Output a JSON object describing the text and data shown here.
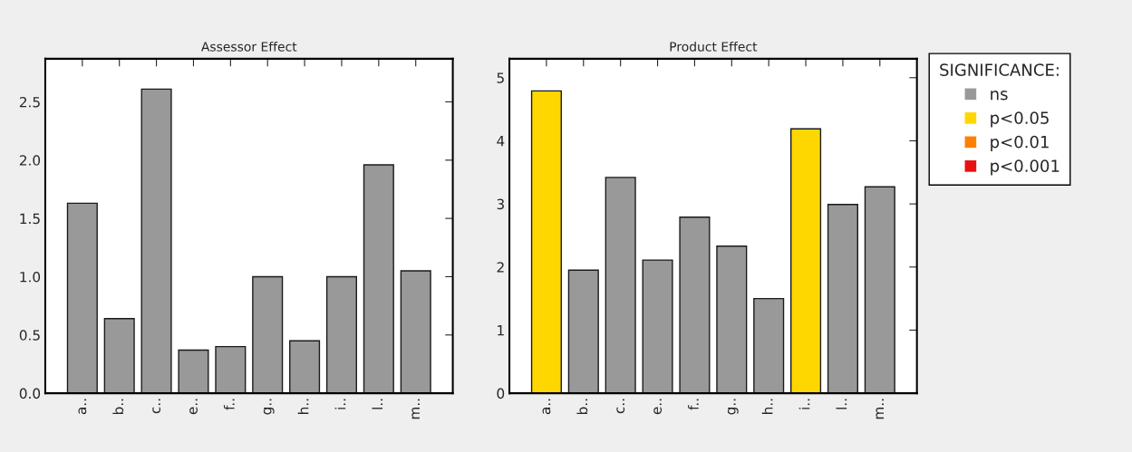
{
  "chart_data": [
    {
      "type": "bar",
      "title": "Assessor Effect",
      "categories": [
        "a..",
        "b..",
        "c..",
        "e..",
        "f..",
        "g..",
        "h..",
        "i..",
        "l..",
        "m.."
      ],
      "series": [
        {
          "color": "#999999",
          "values": [
            1.63,
            0.64,
            2.61,
            0.37,
            0.4,
            1.0,
            0.45,
            1.0,
            1.96,
            1.05
          ]
        }
      ],
      "ylim": [
        0,
        2.87
      ],
      "yticks": [
        {
          "value": 0,
          "label": "0.0"
        },
        0.5,
        {
          "value": 1,
          "label": "1.0"
        },
        1.5,
        {
          "value": 2,
          "label": "2.0"
        },
        2.5
      ],
      "grid": false,
      "legend": false
    },
    {
      "type": "bar",
      "title": "Product Effect",
      "categories": [
        "a..",
        "b..",
        "c..",
        "e..",
        "f..",
        "g..",
        "h..",
        "i..",
        "l..",
        "m.."
      ],
      "series": [
        {
          "name": "ns",
          "color": "#999999",
          "values": [
            null,
            1.95,
            3.42,
            2.11,
            2.79,
            2.33,
            1.5,
            null,
            2.99,
            3.27
          ]
        },
        {
          "name": "p<0.05",
          "color": "#ffd700",
          "values": [
            4.79,
            null,
            null,
            null,
            null,
            null,
            null,
            4.19,
            null,
            null
          ]
        },
        {
          "name": "p<0.01",
          "color": "#ff8000",
          "values": [
            null,
            null,
            null,
            null,
            null,
            null,
            null,
            null,
            null,
            null
          ]
        },
        {
          "name": "p<0.001",
          "color": "#e81010",
          "values": [
            null,
            null,
            null,
            null,
            null,
            null,
            null,
            null,
            null,
            null
          ]
        }
      ],
      "ylim": [
        0,
        5.3
      ],
      "yticks": [
        0,
        1,
        2,
        3,
        4,
        5
      ],
      "grid": false,
      "legend": "top right",
      "legend_title": "SIGNIFICANCE:"
    }
  ]
}
